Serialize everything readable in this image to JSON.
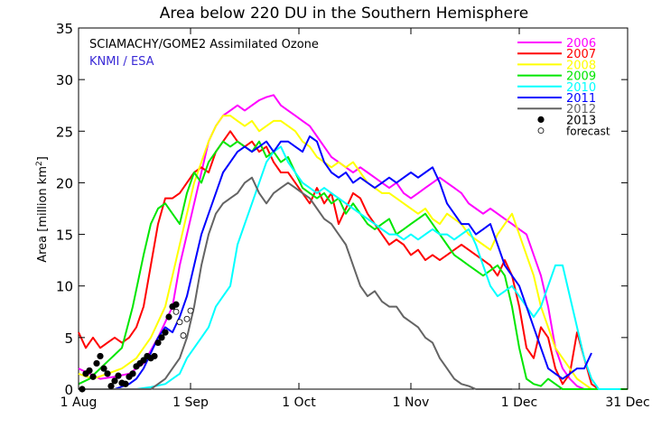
{
  "chart_data": {
    "type": "line",
    "title": "Area below 220 DU in the Southern Hemisphere",
    "annotation_line1": "SCIAMACHY/GOME2 Assimilated Ozone",
    "annotation_line2": "KNMI / ESA",
    "annotation_line2_color": "#3b2bd6",
    "ylabel_main": "Area ",
    "ylabel_bracket": "[million km",
    "ylabel_sup": "2",
    "ylabel_close": "]",
    "xlabel": "",
    "xlim": [
      0,
      152
    ],
    "ylim": [
      0,
      35
    ],
    "x_ticks": [
      {
        "day": 0,
        "label": "1 Aug"
      },
      {
        "day": 31,
        "label": "1 Sep"
      },
      {
        "day": 61,
        "label": "1 Oct"
      },
      {
        "day": 92,
        "label": "1 Nov"
      },
      {
        "day": 122,
        "label": "1 Dec"
      },
      {
        "day": 152,
        "label": "31 Dec"
      }
    ],
    "y_ticks": [
      0,
      5,
      10,
      15,
      20,
      25,
      30,
      35
    ],
    "legend_position": "top-right",
    "series": [
      {
        "name": "2006",
        "color": "#ff00ff",
        "x": [
          0,
          3,
          6,
          10,
          14,
          18,
          22,
          26,
          28,
          30,
          32,
          34,
          36,
          38,
          40,
          42,
          44,
          46,
          48,
          50,
          52,
          54,
          56,
          58,
          60,
          62,
          64,
          66,
          68,
          70,
          72,
          74,
          76,
          78,
          80,
          82,
          84,
          86,
          88,
          90,
          92,
          94,
          96,
          98,
          100,
          102,
          104,
          106,
          108,
          110,
          112,
          114,
          116,
          118,
          120,
          122,
          124,
          126,
          128,
          130,
          132,
          134,
          136,
          138,
          140,
          142,
          144,
          146,
          148,
          150,
          152
        ],
        "y": [
          2,
          1.5,
          1,
          1.2,
          1.5,
          2.5,
          5,
          8,
          12,
          15,
          18,
          21,
          24,
          25.5,
          26.5,
          27,
          27.5,
          27,
          27.5,
          28,
          28.3,
          28.5,
          27.5,
          27,
          26.5,
          26,
          25.5,
          24.5,
          23.5,
          22.5,
          22,
          21.5,
          21,
          21.5,
          21,
          20.5,
          20,
          19.5,
          20,
          19,
          18.5,
          19,
          19.5,
          20,
          20.5,
          20,
          19.5,
          19,
          18,
          17.5,
          17,
          17.5,
          17,
          16.5,
          16,
          15.5,
          15,
          13,
          11,
          8,
          4,
          2,
          1,
          0.3,
          0,
          0,
          0,
          0,
          0,
          0,
          0
        ]
      },
      {
        "name": "2007",
        "color": "#ff0000",
        "x": [
          0,
          2,
          4,
          6,
          8,
          10,
          12,
          14,
          16,
          18,
          20,
          22,
          24,
          26,
          28,
          30,
          32,
          34,
          36,
          38,
          40,
          42,
          44,
          46,
          48,
          50,
          52,
          54,
          56,
          58,
          60,
          62,
          64,
          66,
          68,
          70,
          72,
          74,
          76,
          78,
          80,
          82,
          84,
          86,
          88,
          90,
          92,
          94,
          96,
          98,
          100,
          102,
          104,
          106,
          108,
          110,
          112,
          114,
          116,
          118,
          120,
          122,
          124,
          126,
          128,
          130,
          132,
          134,
          136,
          138,
          140,
          142,
          144,
          146
        ],
        "y": [
          5.5,
          4,
          5,
          4,
          4.5,
          5,
          4.5,
          5,
          6,
          8,
          12,
          16,
          18.5,
          18.5,
          19,
          20,
          21,
          21.5,
          21,
          23,
          24,
          25,
          24,
          23.5,
          24,
          23,
          23.5,
          22,
          21,
          21,
          20,
          19,
          18,
          19.5,
          18,
          19,
          16,
          17.5,
          19,
          18.5,
          17,
          16,
          15,
          14,
          14.5,
          14,
          13,
          13.5,
          12.5,
          13,
          12.5,
          13,
          13.5,
          14,
          13.5,
          13,
          12.5,
          12,
          11,
          12.5,
          11,
          8,
          4,
          3,
          6,
          5,
          2,
          0.5,
          1.5,
          5.5,
          3,
          0.5,
          0,
          0
        ]
      },
      {
        "name": "2008",
        "color": "#ffff00",
        "x": [
          0,
          4,
          8,
          12,
          16,
          20,
          24,
          26,
          28,
          30,
          32,
          34,
          36,
          38,
          40,
          42,
          44,
          46,
          48,
          50,
          52,
          54,
          56,
          58,
          60,
          62,
          64,
          66,
          68,
          70,
          72,
          74,
          76,
          78,
          80,
          82,
          84,
          86,
          88,
          90,
          92,
          94,
          96,
          98,
          100,
          102,
          104,
          106,
          108,
          110,
          112,
          114,
          116,
          118,
          120,
          122,
          124,
          126,
          128,
          130,
          132,
          134,
          136,
          138,
          140,
          142,
          144,
          146,
          148,
          150
        ],
        "y": [
          1.5,
          1,
          1.5,
          2,
          3,
          5,
          8,
          11,
          14,
          17,
          20,
          22,
          24,
          25.5,
          26.5,
          26.5,
          26,
          25.5,
          26,
          25,
          25.5,
          26,
          26,
          25.5,
          25,
          24,
          23.5,
          22.5,
          22,
          21.5,
          22,
          21.5,
          22,
          21,
          20,
          19.5,
          19,
          19,
          18.5,
          18,
          17.5,
          17,
          17.5,
          16.5,
          16,
          17,
          16.5,
          16,
          15,
          14.5,
          14,
          13.5,
          15,
          16,
          17,
          15,
          13,
          11,
          8,
          6,
          4,
          3,
          2,
          1,
          0.5,
          0,
          0,
          0,
          0,
          0
        ]
      },
      {
        "name": "2009",
        "color": "#00e600",
        "x": [
          0,
          3,
          6,
          9,
          12,
          15,
          18,
          20,
          22,
          24,
          26,
          28,
          30,
          32,
          34,
          36,
          38,
          40,
          42,
          44,
          46,
          48,
          50,
          52,
          54,
          56,
          58,
          60,
          62,
          64,
          66,
          68,
          70,
          72,
          74,
          76,
          78,
          80,
          82,
          84,
          86,
          88,
          90,
          92,
          94,
          96,
          98,
          100,
          102,
          104,
          106,
          108,
          110,
          112,
          114,
          116,
          118,
          120,
          122,
          124,
          126,
          128,
          130,
          132,
          134,
          136,
          138,
          140,
          142,
          144,
          146,
          148,
          150,
          152
        ],
        "y": [
          0.5,
          1,
          2,
          3,
          4,
          8,
          13,
          16,
          17.5,
          18,
          17,
          16,
          19,
          21,
          20,
          22,
          23,
          24,
          23.5,
          24,
          23.5,
          23,
          24,
          22.5,
          23,
          22,
          22.5,
          21,
          19.5,
          19,
          18.5,
          19,
          18,
          18.5,
          17,
          18,
          17,
          16,
          15.5,
          16,
          16.5,
          15,
          15.5,
          16,
          16.5,
          17,
          16,
          15,
          14,
          13,
          12.5,
          12,
          11.5,
          11,
          11.5,
          12,
          11,
          8,
          4,
          1,
          0.5,
          0.3,
          1,
          0.5,
          0,
          0,
          0,
          0,
          0,
          0,
          0,
          0,
          0,
          0
        ]
      },
      {
        "name": "2010",
        "color": "#00ffff",
        "x": [
          0,
          10,
          16,
          20,
          24,
          26,
          28,
          30,
          32,
          34,
          36,
          38,
          40,
          42,
          44,
          46,
          48,
          50,
          52,
          54,
          56,
          58,
          60,
          62,
          64,
          66,
          68,
          70,
          72,
          74,
          76,
          78,
          80,
          82,
          84,
          86,
          88,
          90,
          92,
          94,
          96,
          98,
          100,
          102,
          104,
          106,
          108,
          110,
          112,
          114,
          116,
          118,
          120,
          122,
          124,
          126,
          128,
          130,
          132,
          134,
          136,
          138,
          140,
          142,
          144,
          146,
          148,
          150
        ],
        "y": [
          0,
          0,
          0,
          0.2,
          0.5,
          1,
          1.5,
          3,
          4,
          5,
          6,
          8,
          9,
          10,
          14,
          16,
          18,
          20,
          22,
          23,
          23.5,
          22,
          21,
          20,
          19.5,
          19,
          19.5,
          19,
          18.5,
          18,
          17.5,
          17,
          16.5,
          16,
          15.5,
          15,
          15,
          14.5,
          15,
          14.5,
          15,
          15.5,
          15,
          15,
          14.5,
          15,
          15.5,
          14,
          12,
          10,
          9,
          9.5,
          10,
          9,
          8,
          7,
          8,
          10,
          12,
          12,
          9,
          6,
          3,
          1,
          0,
          0,
          0,
          0
        ]
      },
      {
        "name": "2011",
        "color": "#0000ff",
        "x": [
          0,
          10,
          14,
          16,
          18,
          20,
          22,
          24,
          26,
          28,
          30,
          32,
          34,
          36,
          38,
          40,
          42,
          44,
          46,
          48,
          50,
          52,
          54,
          56,
          58,
          60,
          62,
          64,
          66,
          68,
          70,
          72,
          74,
          76,
          78,
          80,
          82,
          84,
          86,
          88,
          90,
          92,
          94,
          96,
          98,
          100,
          102,
          104,
          106,
          108,
          110,
          112,
          114,
          116,
          118,
          120,
          122,
          124,
          126,
          128,
          130,
          132,
          134,
          136,
          138,
          140,
          142
        ],
        "y": [
          0,
          0,
          0.5,
          1,
          2,
          3.5,
          5,
          6,
          5.5,
          7,
          9,
          12,
          15,
          17,
          19,
          21,
          22,
          23,
          23.5,
          23,
          23.5,
          24,
          23,
          24,
          24,
          23.5,
          23,
          24.5,
          24,
          22,
          21,
          20.5,
          21,
          20,
          20.5,
          20,
          19.5,
          20,
          20.5,
          20,
          20.5,
          21,
          20.5,
          21,
          21.5,
          20,
          18,
          17,
          16,
          16,
          15,
          15.5,
          16,
          14,
          12,
          11,
          10,
          8,
          6,
          4,
          2,
          1.5,
          1,
          1.5,
          2,
          2,
          3.5
        ]
      },
      {
        "name": "2012",
        "color": "#646464",
        "x": [
          0,
          20,
          22,
          24,
          26,
          28,
          30,
          32,
          34,
          36,
          38,
          40,
          42,
          44,
          46,
          48,
          50,
          52,
          54,
          56,
          58,
          60,
          62,
          64,
          66,
          68,
          70,
          72,
          74,
          76,
          78,
          80,
          82,
          84,
          86,
          88,
          90,
          92,
          94,
          96,
          98,
          100,
          102,
          104,
          106,
          108,
          110,
          112,
          114,
          116,
          118,
          120
        ],
        "y": [
          0,
          0,
          0.5,
          1,
          2,
          3,
          5,
          8,
          12,
          15,
          17,
          18,
          18.5,
          19,
          20,
          20.5,
          19,
          18,
          19,
          19.5,
          20,
          19.5,
          19,
          18.5,
          17.5,
          16.5,
          16,
          15,
          14,
          12,
          10,
          9,
          9.5,
          8.5,
          8,
          8,
          7,
          6.5,
          6,
          5,
          4.5,
          3,
          2,
          1,
          0.5,
          0.3,
          0,
          0,
          0,
          0,
          0,
          0
        ]
      }
    ],
    "observed_2013": {
      "name": "2013",
      "x": [
        1,
        2,
        3,
        4,
        5,
        6,
        7,
        8,
        9,
        10,
        11,
        12,
        13,
        14,
        15,
        16,
        17,
        18,
        19,
        20,
        21,
        22,
        23,
        24,
        25,
        26,
        27
      ],
      "y": [
        0,
        1.5,
        1.8,
        1.2,
        2.5,
        3.2,
        2,
        1.5,
        0.3,
        0.8,
        1.3,
        0.6,
        0.5,
        1.2,
        1.5,
        2.2,
        2.5,
        2.8,
        3.2,
        3,
        3.2,
        4.5,
        5,
        5.5,
        7,
        8,
        8.2
      ]
    },
    "forecast": {
      "name": "forecast",
      "x": [
        27,
        28,
        29,
        30,
        31
      ],
      "y": [
        7.5,
        6.5,
        5.2,
        6.8,
        7.6
      ]
    }
  }
}
